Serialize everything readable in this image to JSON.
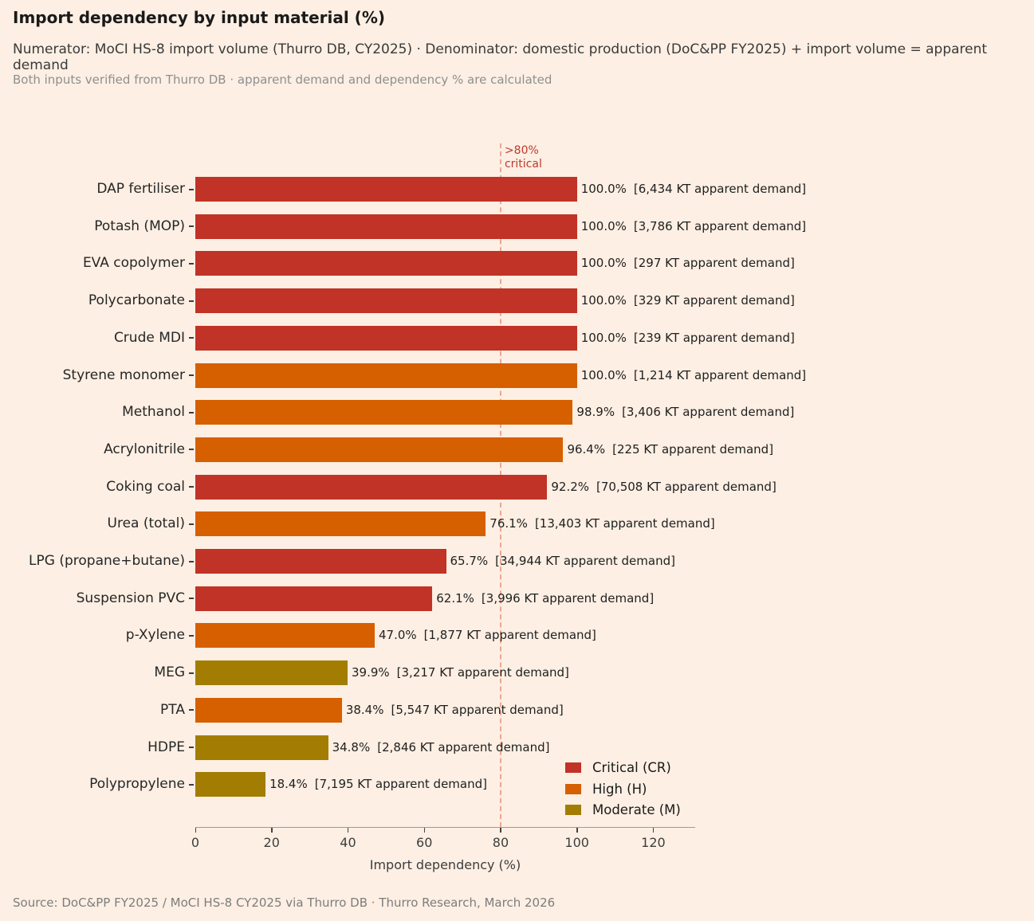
{
  "header": {
    "title": "Import dependency by input material (%)",
    "subtitle": "Numerator: MoCI HS-8 import volume (Thurro DB, CY2025) · Denominator: domestic production (DoC&PP FY2025) + import volume = apparent demand",
    "note": "Both inputs verified from Thurro DB · apparent demand and dependency % are calculated"
  },
  "chart_data": {
    "type": "bar",
    "orientation": "horizontal",
    "title": "Import dependency by input material (%)",
    "xlabel": "Import dependency (%)",
    "xlim": [
      0,
      131
    ],
    "xticks": [
      0,
      20,
      40,
      60,
      80,
      100,
      120
    ],
    "grid": false,
    "threshold": {
      "value": 80,
      "label": ">80%\ncritical",
      "line_color": "#eda593",
      "text_color": "#c0392b"
    },
    "severity_colors": {
      "CR": "#c13326",
      "H": "#d65f00",
      "M": "#a27d01"
    },
    "rows": [
      {
        "label": "DAP fertiliser",
        "value": 100.0,
        "pct": "100.0%",
        "demand": "[6,434 KT apparent demand]",
        "severity": "CR"
      },
      {
        "label": "Potash (MOP)",
        "value": 100.0,
        "pct": "100.0%",
        "demand": "[3,786 KT apparent demand]",
        "severity": "CR"
      },
      {
        "label": "EVA copolymer",
        "value": 100.0,
        "pct": "100.0%",
        "demand": "[297 KT apparent demand]",
        "severity": "CR"
      },
      {
        "label": "Polycarbonate",
        "value": 100.0,
        "pct": "100.0%",
        "demand": "[329 KT apparent demand]",
        "severity": "CR"
      },
      {
        "label": "Crude MDI",
        "value": 100.0,
        "pct": "100.0%",
        "demand": "[239 KT apparent demand]",
        "severity": "CR"
      },
      {
        "label": "Styrene monomer",
        "value": 100.0,
        "pct": "100.0%",
        "demand": "[1,214 KT apparent demand]",
        "severity": "H"
      },
      {
        "label": "Methanol",
        "value": 98.9,
        "pct": "98.9%",
        "demand": "[3,406 KT apparent demand]",
        "severity": "H"
      },
      {
        "label": "Acrylonitrile",
        "value": 96.4,
        "pct": "96.4%",
        "demand": "[225 KT apparent demand]",
        "severity": "H"
      },
      {
        "label": "Coking coal",
        "value": 92.2,
        "pct": "92.2%",
        "demand": "[70,508 KT apparent demand]",
        "severity": "CR"
      },
      {
        "label": "Urea (total)",
        "value": 76.1,
        "pct": "76.1%",
        "demand": "[13,403 KT apparent demand]",
        "severity": "H"
      },
      {
        "label": "LPG (propane+butane)",
        "value": 65.7,
        "pct": "65.7%",
        "demand": "[34,944 KT apparent demand]",
        "severity": "CR"
      },
      {
        "label": "Suspension PVC",
        "value": 62.1,
        "pct": "62.1%",
        "demand": "[3,996 KT apparent demand]",
        "severity": "CR"
      },
      {
        "label": "p-Xylene",
        "value": 47.0,
        "pct": "47.0%",
        "demand": "[1,877 KT apparent demand]",
        "severity": "H"
      },
      {
        "label": "MEG",
        "value": 39.9,
        "pct": "39.9%",
        "demand": "[3,217 KT apparent demand]",
        "severity": "M"
      },
      {
        "label": "PTA",
        "value": 38.4,
        "pct": "38.4%",
        "demand": "[5,547 KT apparent demand]",
        "severity": "H"
      },
      {
        "label": "HDPE",
        "value": 34.8,
        "pct": "34.8%",
        "demand": "[2,846 KT apparent demand]",
        "severity": "M"
      },
      {
        "label": "Polypropylene",
        "value": 18.4,
        "pct": "18.4%",
        "demand": "[7,195 KT apparent demand]",
        "severity": "M"
      }
    ],
    "legend": [
      {
        "label": "Critical (CR)",
        "severity": "CR"
      },
      {
        "label": "High (H)",
        "severity": "H"
      },
      {
        "label": "Moderate (M)",
        "severity": "M"
      }
    ],
    "legend_position": "lower right"
  },
  "footer": {
    "source": "Source: DoC&PP FY2025 / MoCI HS-8 CY2025 via Thurro DB · Thurro Research, March 2026"
  }
}
